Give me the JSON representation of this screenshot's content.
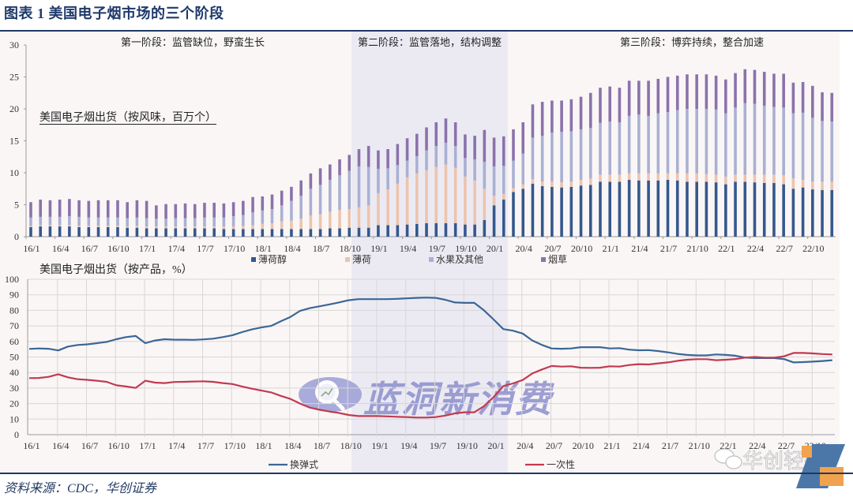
{
  "header": {
    "title": "图表 1  美国电子烟市场的三个阶段"
  },
  "phases": [
    {
      "label": "第一阶段：监管缺位，野蛮生长"
    },
    {
      "label": "第二阶段：监管落地，结构调整"
    },
    {
      "label": "第三阶段：博弈持续，整合加速"
    }
  ],
  "subtitles": {
    "top": "美国电子烟出货（按风味，百万个）",
    "bottom": "美国电子烟出货（按产品，%）"
  },
  "footer": {
    "source": "资料来源：CDC，华创证券"
  },
  "watermarks": {
    "center": "蓝洞新消费",
    "corner": "华创轻研"
  },
  "colors": {
    "title": "#1f3a6b",
    "rule": "#1f3864",
    "phase2_band": "#ebeaf3",
    "plot_bg": "#faf6f6"
  },
  "chart_data": [
    {
      "type": "bar",
      "stacked": true,
      "title": "美国电子烟出货（按风味，百万个）",
      "xlabel": "",
      "ylabel": "百万个",
      "ylim": [
        0,
        30
      ],
      "yticks": [
        0,
        5,
        10,
        15,
        20,
        25,
        30
      ],
      "grid": false,
      "legend_position": "bottom",
      "categories": [
        "16/1",
        "16/2",
        "16/3",
        "16/4",
        "16/5",
        "16/6",
        "16/7",
        "16/8",
        "16/9",
        "16/10",
        "16/11",
        "16/12",
        "17/1",
        "17/2",
        "17/3",
        "17/4",
        "17/5",
        "17/6",
        "17/7",
        "17/8",
        "17/9",
        "17/10",
        "17/11",
        "17/12",
        "18/1",
        "18/2",
        "18/3",
        "18/4",
        "18/5",
        "18/6",
        "18/7",
        "18/8",
        "18/9",
        "18/10",
        "18/11",
        "18/12",
        "19/1",
        "19/2",
        "19/3",
        "19/4",
        "19/5",
        "19/6",
        "19/7",
        "19/8",
        "19/9",
        "19/10",
        "19/11",
        "19/12",
        "20/1",
        "20/2",
        "20/3",
        "20/4",
        "20/5",
        "20/6",
        "20/7",
        "20/8",
        "20/9",
        "20/10",
        "20/11",
        "20/12",
        "21/1",
        "21/2",
        "21/3",
        "21/4",
        "21/5",
        "21/6",
        "21/7",
        "21/8",
        "21/9",
        "21/10",
        "21/11",
        "21/12",
        "22/1",
        "22/2",
        "22/3",
        "22/4",
        "22/5",
        "22/6",
        "22/7",
        "22/8",
        "22/9",
        "22/10",
        "22/11",
        "22/12"
      ],
      "xtick_labels": [
        "16/1",
        "16/4",
        "16/7",
        "16/10",
        "17/1",
        "17/4",
        "17/7",
        "17/10",
        "18/1",
        "18/4",
        "18/7",
        "18/10",
        "19/1",
        "19/4",
        "19/7",
        "19/10",
        "20/1",
        "20/4",
        "20/7",
        "20/10",
        "21/1",
        "21/4",
        "21/7",
        "21/10",
        "22/1",
        "22/4",
        "22/7",
        "22/10"
      ],
      "series": [
        {
          "name": "薄荷醇",
          "color": "#34588c",
          "values": [
            1.5,
            1.6,
            1.6,
            1.6,
            1.6,
            1.5,
            1.5,
            1.5,
            1.5,
            1.5,
            1.4,
            1.4,
            1.3,
            1.3,
            1.3,
            1.3,
            1.3,
            1.3,
            1.3,
            1.3,
            1.2,
            1.2,
            1.2,
            1.2,
            1.2,
            1.2,
            1.2,
            1.2,
            1.2,
            1.2,
            1.2,
            1.3,
            1.3,
            1.4,
            1.4,
            1.4,
            1.8,
            1.8,
            1.8,
            1.9,
            2.0,
            2.1,
            2.1,
            2.1,
            2.1,
            1.9,
            1.9,
            2.6,
            4.9,
            5.8,
            7.0,
            7.5,
            8.3,
            7.9,
            7.8,
            7.7,
            7.8,
            8.0,
            8.1,
            8.6,
            8.6,
            8.6,
            8.9,
            8.8,
            8.8,
            8.8,
            8.9,
            8.8,
            8.6,
            8.6,
            8.6,
            8.5,
            8.2,
            8.6,
            8.6,
            8.5,
            8.4,
            8.4,
            8.2,
            7.5,
            7.7,
            7.4,
            7.3,
            7.3
          ]
        },
        {
          "name": "薄荷",
          "color": "#ecc4ae",
          "values": [
            0.2,
            0.2,
            0.2,
            0.2,
            0.2,
            0.2,
            0.2,
            0.2,
            0.2,
            0.2,
            0.2,
            0.3,
            0.3,
            0.3,
            0.3,
            0.3,
            0.3,
            0.3,
            0.3,
            0.3,
            0.4,
            0.4,
            0.5,
            0.6,
            0.8,
            0.9,
            1.2,
            1.3,
            1.6,
            2.1,
            2.3,
            2.6,
            2.9,
            2.9,
            3.2,
            3.5,
            5.0,
            5.6,
            6.5,
            7.4,
            7.9,
            8.3,
            8.8,
            9.2,
            8.7,
            7.5,
            6.9,
            4.9,
            1.5,
            0.9,
            0.6,
            0.7,
            0.7,
            0.7,
            0.8,
            0.8,
            0.8,
            0.9,
            1.0,
            1.1,
            1.1,
            1.1,
            1.0,
            1.1,
            1.1,
            1.1,
            1.0,
            1.1,
            1.3,
            1.3,
            1.2,
            1.2,
            1.2,
            1.1,
            1.1,
            1.2,
            1.3,
            1.3,
            1.4,
            1.6,
            1.2,
            1.2,
            1.3,
            1.3
          ]
        },
        {
          "name": "水果及其他",
          "color": "#a9b0d2",
          "values": [
            1.3,
            1.3,
            1.3,
            1.3,
            1.4,
            1.4,
            1.3,
            1.3,
            1.3,
            1.3,
            1.3,
            1.3,
            1.3,
            1.2,
            1.2,
            1.3,
            1.3,
            1.3,
            1.4,
            1.4,
            1.4,
            1.6,
            1.7,
            2.0,
            2.1,
            2.2,
            2.5,
            3.1,
            3.6,
            4.2,
            4.6,
            5.0,
            5.4,
            6.0,
            6.4,
            6.0,
            3.8,
            3.3,
            2.9,
            2.6,
            2.7,
            3.1,
            3.3,
            3.4,
            3.4,
            2.9,
            3.3,
            4.2,
            4.6,
            4.4,
            4.3,
            4.8,
            6.5,
            7.2,
            7.7,
            7.9,
            7.9,
            7.9,
            7.9,
            8.1,
            8.3,
            8.2,
            9.0,
            9.2,
            9.0,
            9.4,
            9.6,
            9.9,
            10.1,
            10.1,
            10.2,
            10.2,
            9.9,
            10.5,
            11.2,
            11.1,
            10.8,
            10.6,
            10.6,
            10.2,
            10.5,
            10.0,
            9.5,
            9.4
          ]
        },
        {
          "name": "烟草",
          "color": "#8a72ab",
          "values": [
            2.4,
            2.7,
            2.6,
            2.7,
            2.7,
            2.6,
            2.6,
            2.7,
            2.7,
            2.7,
            2.5,
            2.7,
            2.7,
            2.1,
            2.3,
            2.2,
            2.3,
            2.2,
            2.3,
            2.3,
            2.2,
            2.2,
            2.2,
            2.4,
            2.2,
            2.3,
            2.3,
            2.2,
            2.4,
            2.4,
            2.6,
            2.4,
            2.5,
            2.5,
            2.7,
            3.3,
            2.9,
            3.0,
            3.3,
            3.5,
            3.5,
            3.6,
            3.7,
            3.8,
            3.7,
            3.7,
            3.7,
            5.0,
            4.5,
            4.6,
            4.9,
            4.9,
            5.2,
            5.3,
            5.0,
            4.9,
            5.0,
            5.1,
            5.5,
            5.5,
            5.5,
            5.4,
            5.5,
            5.3,
            5.5,
            5.4,
            5.5,
            5.4,
            5.4,
            5.4,
            5.4,
            5.3,
            5.3,
            5.4,
            5.3,
            5.3,
            5.3,
            5.2,
            5.3,
            4.8,
            4.8,
            5.0,
            4.5,
            4.5
          ]
        }
      ]
    },
    {
      "type": "line",
      "title": "美国电子烟出货（按产品，%）",
      "xlabel": "",
      "ylabel": "%",
      "ylim": [
        0,
        100
      ],
      "yticks": [
        0,
        10,
        20,
        30,
        40,
        50,
        60,
        70,
        80,
        90,
        100
      ],
      "grid": true,
      "legend_position": "bottom",
      "xtick_labels": [
        "16/1",
        "16/4",
        "16/7",
        "16/10",
        "17/1",
        "17/4",
        "17/7",
        "17/10",
        "18/1",
        "18/4",
        "18/7",
        "18/10",
        "19/1",
        "19/4",
        "19/7",
        "19/10",
        "20/1",
        "20/4",
        "20/7",
        "20/10",
        "21/1",
        "21/4",
        "21/7",
        "21/10",
        "22/1",
        "22/4",
        "22/7",
        "22/10"
      ],
      "series": [
        {
          "name": "换弹式",
          "color": "#3b6695",
          "values": [
            55.2,
            55.5,
            55.3,
            54.2,
            56.7,
            57.7,
            58.1,
            58.9,
            59.7,
            61.4,
            62.8,
            63.5,
            58.9,
            60.6,
            61.4,
            61.1,
            61.1,
            61.0,
            61.3,
            61.8,
            62.8,
            64.0,
            66.0,
            67.7,
            69.0,
            70.0,
            73.0,
            75.8,
            79.7,
            81.4,
            82.6,
            83.8,
            85.1,
            86.5,
            87.2,
            87.2,
            87.2,
            87.2,
            87.4,
            87.7,
            88.0,
            88.2,
            88.0,
            86.8,
            85.1,
            84.8,
            84.8,
            80.0,
            74.1,
            67.9,
            66.9,
            65.1,
            60.6,
            57.7,
            55.5,
            55.3,
            55.5,
            56.3,
            56.3,
            56.3,
            55.5,
            55.7,
            54.7,
            54.3,
            54.4,
            53.8,
            53.0,
            52.0,
            51.3,
            51.0,
            51.0,
            51.6,
            51.3,
            50.8,
            49.6,
            49.3,
            49.3,
            49.3,
            48.7,
            46.5,
            46.7,
            47.0,
            47.4,
            47.9
          ]
        },
        {
          "name": "一次性",
          "color": "#c23a50",
          "values": [
            36.4,
            36.5,
            37.2,
            38.9,
            36.9,
            35.7,
            35.3,
            34.7,
            34.0,
            31.8,
            31.0,
            30.1,
            34.7,
            33.5,
            33.2,
            33.9,
            34.0,
            34.2,
            34.3,
            34.0,
            33.2,
            32.6,
            31.0,
            29.6,
            28.4,
            27.2,
            25.0,
            23.0,
            20.0,
            17.4,
            16.1,
            14.9,
            14.0,
            12.7,
            12.0,
            12.0,
            12.0,
            11.8,
            11.5,
            11.3,
            11.0,
            11.0,
            11.3,
            12.3,
            13.7,
            14.4,
            14.4,
            18.3,
            24.2,
            31.3,
            33.0,
            35.2,
            39.4,
            42.0,
            44.2,
            43.8,
            44.0,
            43.1,
            43.0,
            43.1,
            44.0,
            43.8,
            44.8,
            45.4,
            45.2,
            45.9,
            46.5,
            47.5,
            48.2,
            48.6,
            48.6,
            47.9,
            48.2,
            48.7,
            49.6,
            50.0,
            49.6,
            49.6,
            50.4,
            52.6,
            52.6,
            52.3,
            51.9,
            51.6
          ]
        }
      ]
    }
  ]
}
